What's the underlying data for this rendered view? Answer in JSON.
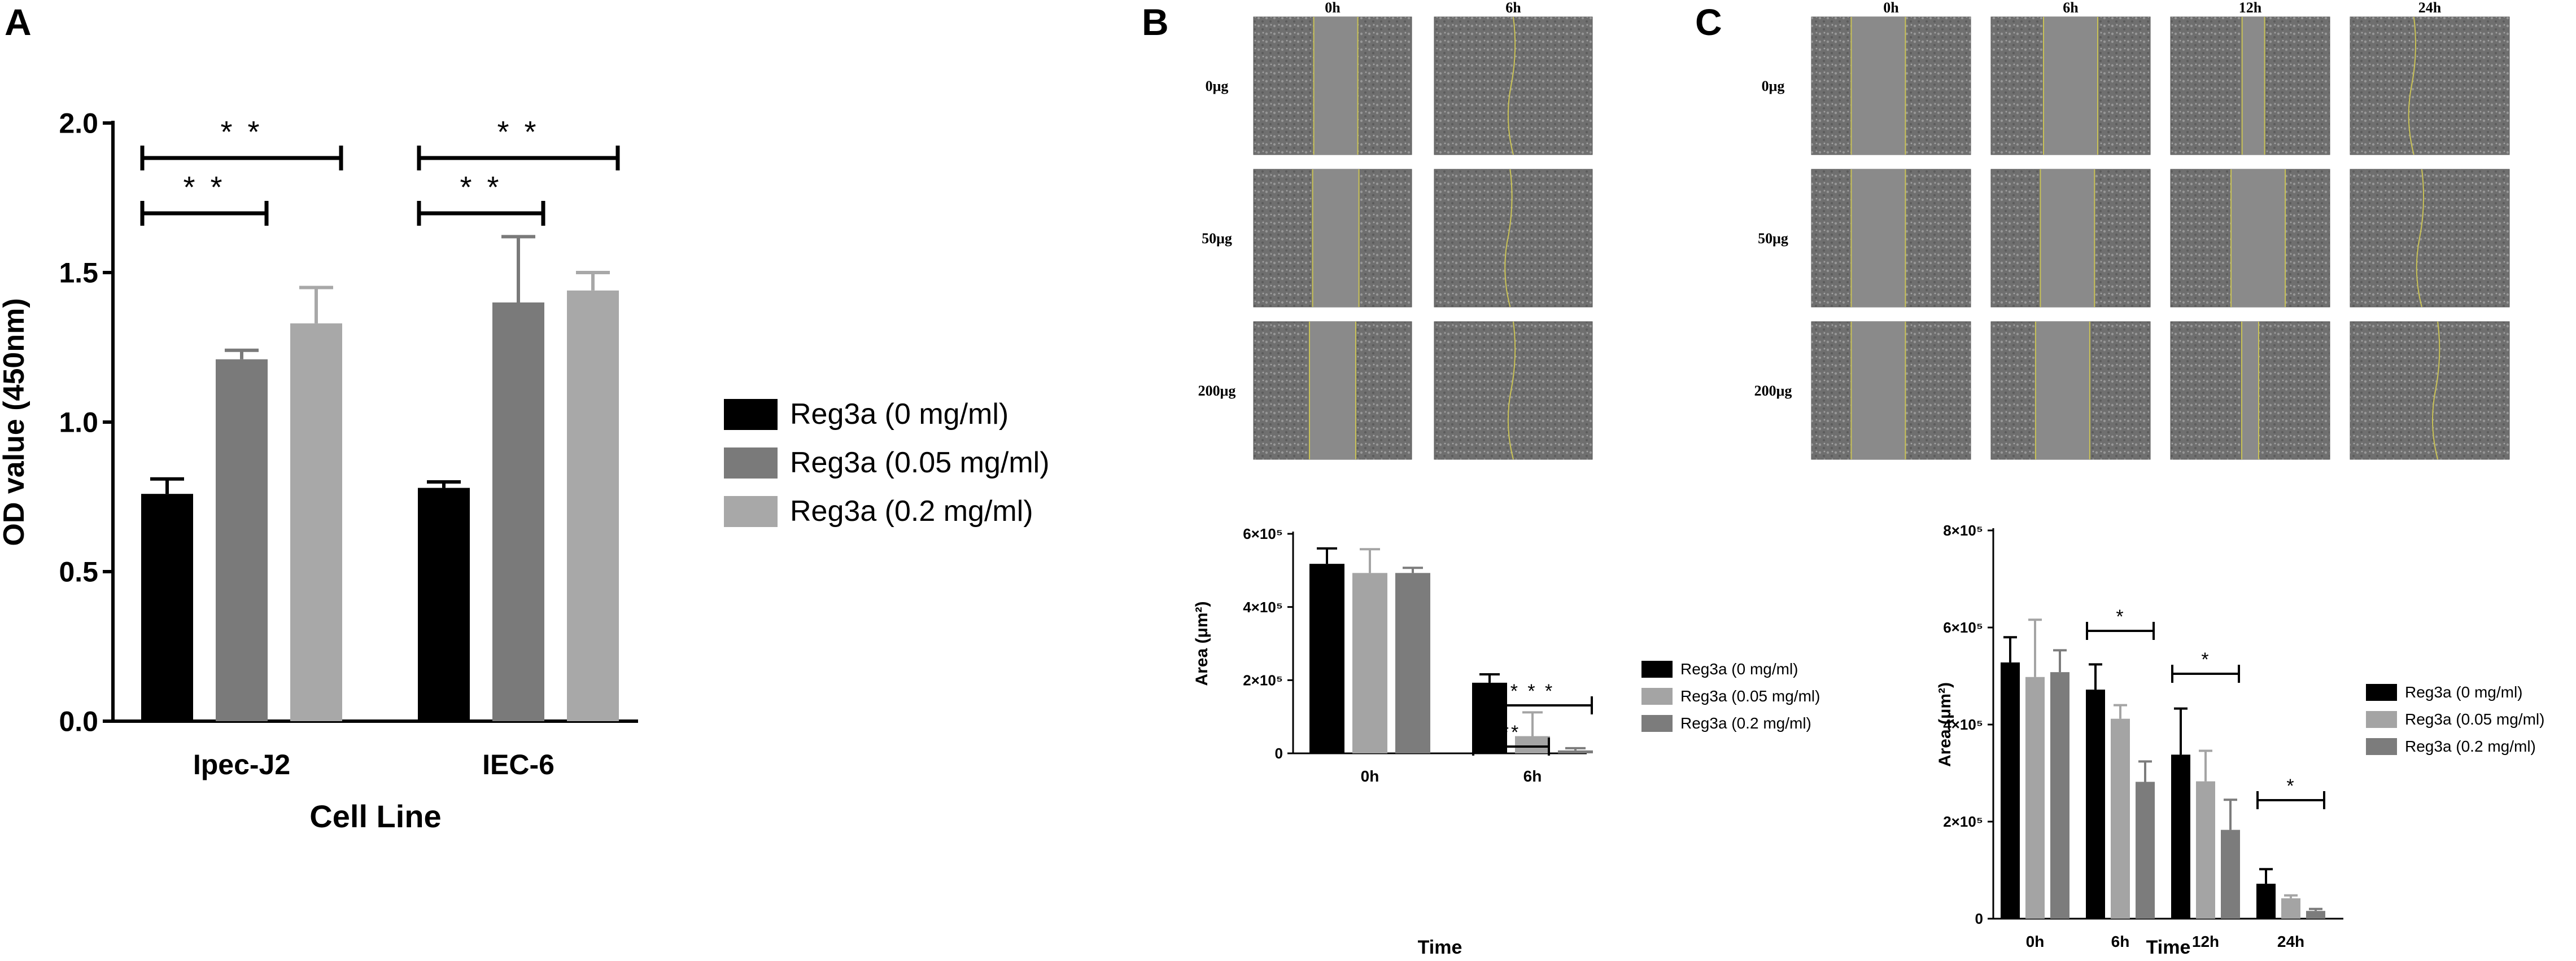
{
  "colors": {
    "black": "#000000",
    "dark_gray": "#7a7a7a",
    "light_gray": "#a8a8a8",
    "b_mid": "#a4a4a4",
    "b_dark": "#7c7c7c",
    "micro_bg": "#6f6f6f",
    "wound": "#8a8a8a",
    "edge": "#c9c256"
  },
  "panels": {
    "A": {
      "letter": "A"
    },
    "B": {
      "letter": "B",
      "time_cols": [
        "0h",
        "6h"
      ],
      "dose_rows": [
        "0μg",
        "50μg",
        "200μg"
      ]
    },
    "C": {
      "letter": "C",
      "time_cols": [
        "0h",
        "6h",
        "12h",
        "24h"
      ],
      "dose_rows": [
        "0μg",
        "50μg",
        "200μg"
      ]
    }
  },
  "chart_data": [
    {
      "type": "bar",
      "panel": "A",
      "categories": [
        "Ipec-J2",
        "IEC-6"
      ],
      "series": [
        {
          "name": "Reg3a (0 mg/ml)",
          "values": [
            0.76,
            0.78
          ],
          "errors": [
            0.05,
            0.02
          ]
        },
        {
          "name": "Reg3a (0.05 mg/ml)",
          "values": [
            1.21,
            1.4
          ],
          "errors": [
            0.03,
            0.22
          ]
        },
        {
          "name": "Reg3a (0.2 mg/ml)",
          "values": [
            1.33,
            1.44
          ],
          "errors": [
            0.12,
            0.06
          ]
        }
      ],
      "xlabel": "Cell Line",
      "ylabel": "OD value (450nm)",
      "ylim": [
        0,
        2.0
      ],
      "yticks": [
        "0.0",
        "0.5",
        "1.0",
        "1.5",
        "2.0"
      ],
      "legend_position": "right",
      "significance": [
        {
          "category": "Ipec-J2",
          "from_series": 0,
          "to_series": 1,
          "label": "* *"
        },
        {
          "category": "Ipec-J2",
          "from_series": 0,
          "to_series": 2,
          "label": "* *"
        },
        {
          "category": "IEC-6",
          "from_series": 0,
          "to_series": 1,
          "label": "* *"
        },
        {
          "category": "IEC-6",
          "from_series": 0,
          "to_series": 2,
          "label": "* *"
        }
      ]
    },
    {
      "type": "bar",
      "panel": "B",
      "categories": [
        "0h",
        "6h"
      ],
      "series": [
        {
          "name": "Reg3a (0 mg/ml)",
          "values": [
            518000,
            193000
          ],
          "errors": [
            42000,
            23000
          ]
        },
        {
          "name": "Reg3a (0.05 mg/ml)",
          "values": [
            493000,
            47000
          ],
          "errors": [
            65000,
            65000
          ]
        },
        {
          "name": "Reg3a (0.2 mg/ml)",
          "values": [
            493000,
            8000
          ],
          "errors": [
            14000,
            6000
          ]
        }
      ],
      "xlabel": "Time",
      "ylabel": "Area (μm²)",
      "ylim": [
        0,
        600000
      ],
      "yticks": [
        "0",
        "2×10⁵",
        "4×10⁵",
        "6×10⁵"
      ],
      "legend_position": "right",
      "significance": [
        {
          "category": "6h",
          "from_series": 0,
          "to_series": 1,
          "label": "**"
        },
        {
          "category": "6h",
          "from_series": 0,
          "to_series": 2,
          "label": "* * *"
        }
      ]
    },
    {
      "type": "bar",
      "panel": "C",
      "categories": [
        "0h",
        "6h",
        "12h",
        "24h"
      ],
      "series": [
        {
          "name": "Reg3a (0 mg/ml)",
          "values": [
            528000,
            472000,
            338000,
            72000
          ],
          "errors": [
            52000,
            52000,
            95000,
            30000
          ]
        },
        {
          "name": "Reg3a (0.05 mg/ml)",
          "values": [
            498000,
            412000,
            283000,
            42000
          ],
          "errors": [
            118000,
            28000,
            63000,
            6000
          ]
        },
        {
          "name": "Reg3a (0.2 mg/ml)",
          "values": [
            508000,
            282000,
            183000,
            16000
          ],
          "errors": [
            45000,
            42000,
            62000,
            4000
          ]
        }
      ],
      "xlabel": "Time",
      "ylabel": "Area (μm²)",
      "ylim": [
        0,
        800000
      ],
      "yticks": [
        "0",
        "2×10⁵",
        "4×10⁵",
        "6×10⁵",
        "8×10⁵"
      ],
      "legend_position": "right",
      "significance": [
        {
          "category": "6h",
          "from_series": 0,
          "to_series": 2,
          "label": "*"
        },
        {
          "category": "12h",
          "from_series": 0,
          "to_series": 2,
          "label": "*"
        },
        {
          "category": "24h",
          "from_series": 0,
          "to_series": 2,
          "label": "*"
        }
      ]
    }
  ]
}
